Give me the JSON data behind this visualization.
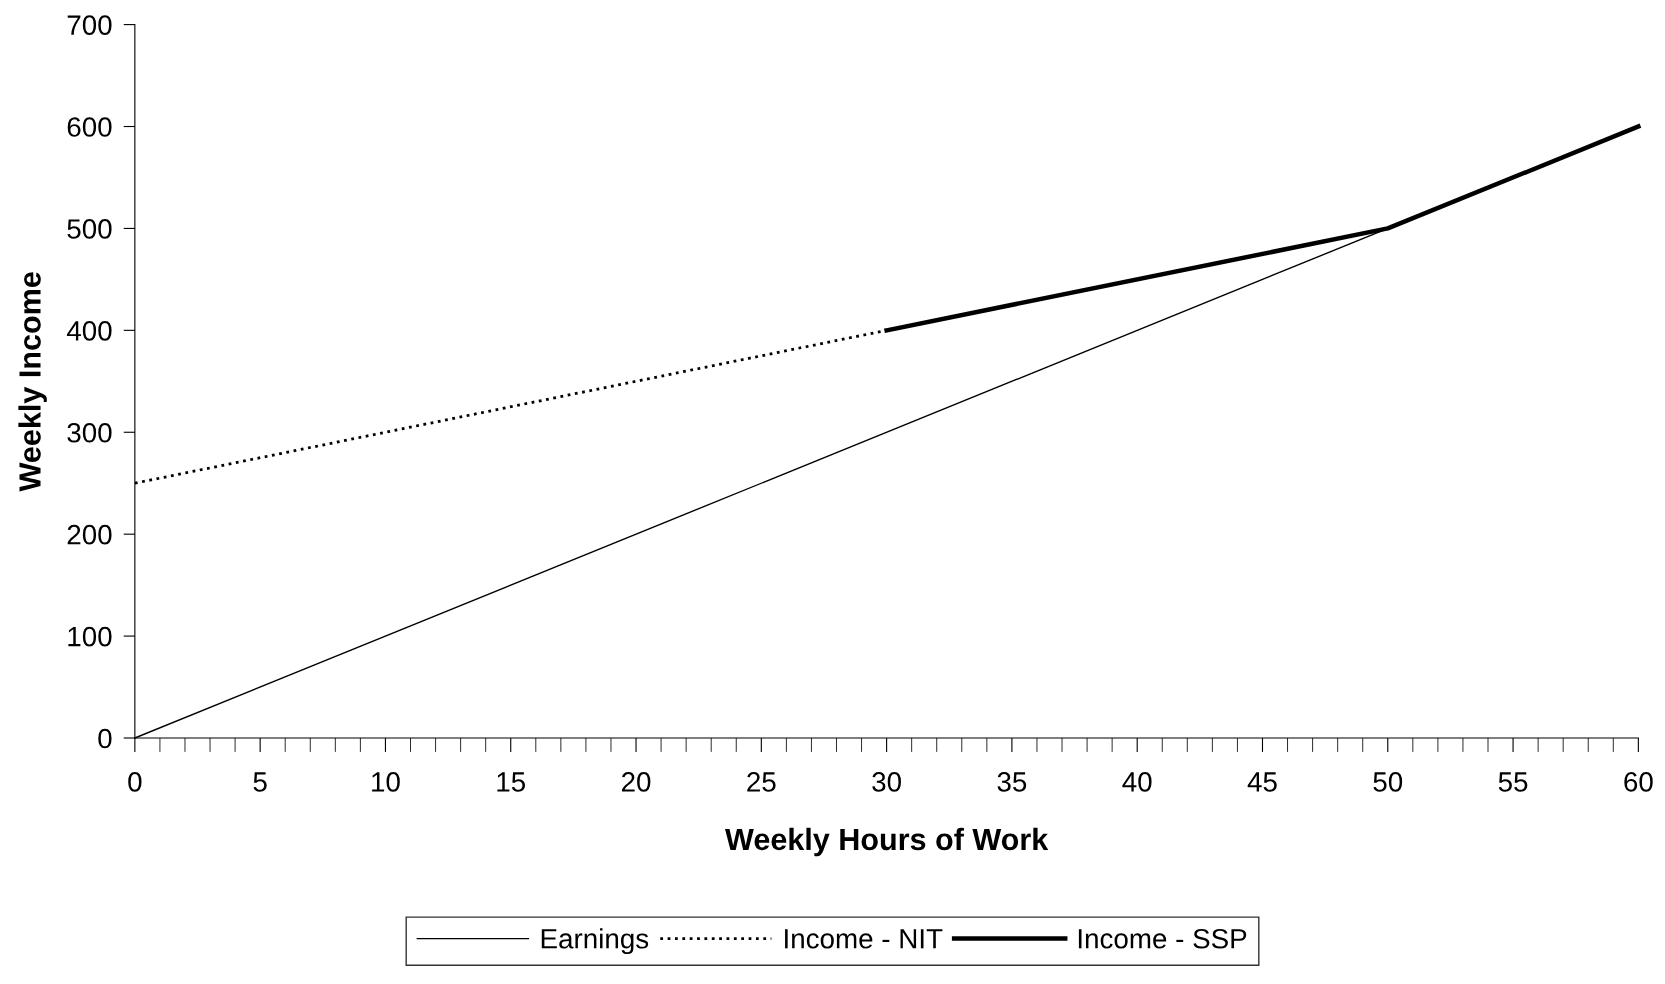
{
  "chart_data": {
    "type": "line",
    "xlabel": "Weekly Hours of Work",
    "ylabel": "Weekly Income",
    "series": [
      {
        "name": "Earnings",
        "color": "#000000",
        "line_style": "solid",
        "x": [
          0,
          60
        ],
        "values": [
          0,
          600
        ]
      },
      {
        "name": "Income - NIT",
        "color": "#000000",
        "line_style": "dotted",
        "x": [
          0,
          30
        ],
        "values": [
          250,
          400
        ]
      },
      {
        "name": "Income - SSP",
        "color": "#000000",
        "line_style": "solid",
        "x": [
          30,
          50,
          60
        ],
        "values": [
          400,
          500,
          600
        ]
      }
    ],
    "xlim": [
      0,
      60
    ],
    "ylim": [
      0,
      700
    ],
    "xticks": [
      0,
      {
        "value": 1,
        "label": null
      },
      {
        "value": 2,
        "label": null
      },
      {
        "value": 3,
        "label": null
      },
      {
        "value": 4,
        "label": null
      },
      5,
      {
        "value": 6,
        "label": null
      },
      {
        "value": 7,
        "label": null
      },
      {
        "value": 8,
        "label": null
      },
      {
        "value": 9,
        "label": null
      },
      10,
      {
        "value": 11,
        "label": null
      },
      {
        "value": 12,
        "label": null
      },
      {
        "value": 13,
        "label": null
      },
      {
        "value": 14,
        "label": null
      },
      15,
      {
        "value": 16,
        "label": null
      },
      {
        "value": 17,
        "label": null
      },
      {
        "value": 18,
        "label": null
      },
      {
        "value": 19,
        "label": null
      },
      20,
      {
        "value": 21,
        "label": null
      },
      {
        "value": 22,
        "label": null
      },
      {
        "value": 23,
        "label": null
      },
      {
        "value": 24,
        "label": null
      },
      25,
      {
        "value": 26,
        "label": null
      },
      {
        "value": 27,
        "label": null
      },
      {
        "value": 28,
        "label": null
      },
      {
        "value": 29,
        "label": null
      },
      30,
      {
        "value": 31,
        "label": null
      },
      {
        "value": 32,
        "label": null
      },
      {
        "value": 33,
        "label": null
      },
      {
        "value": 34,
        "label": null
      },
      35,
      {
        "value": 36,
        "label": null
      },
      {
        "value": 37,
        "label": null
      },
      {
        "value": 38,
        "label": null
      },
      {
        "value": 39,
        "label": null
      },
      40,
      {
        "value": 41,
        "label": null
      },
      {
        "value": 42,
        "label": null
      },
      {
        "value": 43,
        "label": null
      },
      {
        "value": 44,
        "label": null
      },
      45,
      {
        "value": 46,
        "label": null
      },
      {
        "value": 47,
        "label": null
      },
      {
        "value": 48,
        "label": null
      },
      {
        "value": 49,
        "label": null
      },
      50,
      {
        "value": 51,
        "label": null
      },
      {
        "value": 52,
        "label": null
      },
      {
        "value": 53,
        "label": null
      },
      {
        "value": 54,
        "label": null
      },
      55,
      {
        "value": 56,
        "label": null
      },
      {
        "value": 57,
        "label": null
      },
      {
        "value": 58,
        "label": null
      },
      {
        "value": 59,
        "label": null
      },
      60
    ],
    "yticks": [
      0,
      100,
      200,
      300,
      400,
      500,
      600,
      700
    ],
    "grid": false,
    "legend": "bottom",
    "marker": "none"
  }
}
